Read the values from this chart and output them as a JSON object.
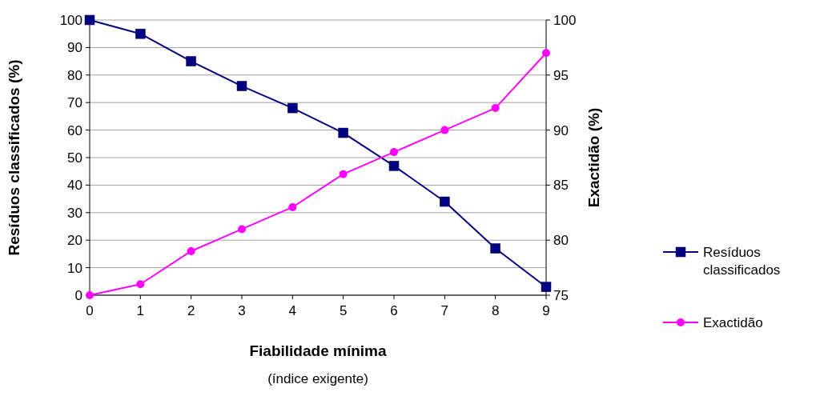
{
  "chart_data": {
    "type": "line",
    "xlabel": "Fiabilidade mínima",
    "ylabel": "Resíduos classificados (%)",
    "y2label": "Exactidão (%)",
    "annotations": [
      "(índice exigente)"
    ],
    "x": [
      0,
      1,
      2,
      3,
      4,
      5,
      6,
      7,
      8,
      9
    ],
    "xlim": [
      0,
      9
    ],
    "xticks": [
      0,
      1,
      2,
      3,
      4,
      5,
      6,
      7,
      8,
      9
    ],
    "ylim": [
      0,
      100
    ],
    "yticks": [
      0,
      10,
      20,
      30,
      40,
      50,
      60,
      70,
      80,
      90,
      100
    ],
    "y2lim": [
      75,
      100
    ],
    "y2ticks": [
      75,
      80,
      85,
      90,
      95,
      100
    ],
    "grid": "y",
    "legend": "right",
    "series": [
      {
        "name": "Resíduos classificados",
        "color": "#000080",
        "marker": "square",
        "values": [
          100,
          95,
          85,
          76,
          68,
          59,
          47,
          34,
          17,
          3
        ]
      },
      {
        "name": "Exactidão",
        "color": "#ff00ff",
        "marker": "circle",
        "axis": "y2",
        "values": [
          75,
          76,
          79,
          81,
          83,
          86,
          88,
          90,
          92,
          97
        ]
      }
    ]
  }
}
